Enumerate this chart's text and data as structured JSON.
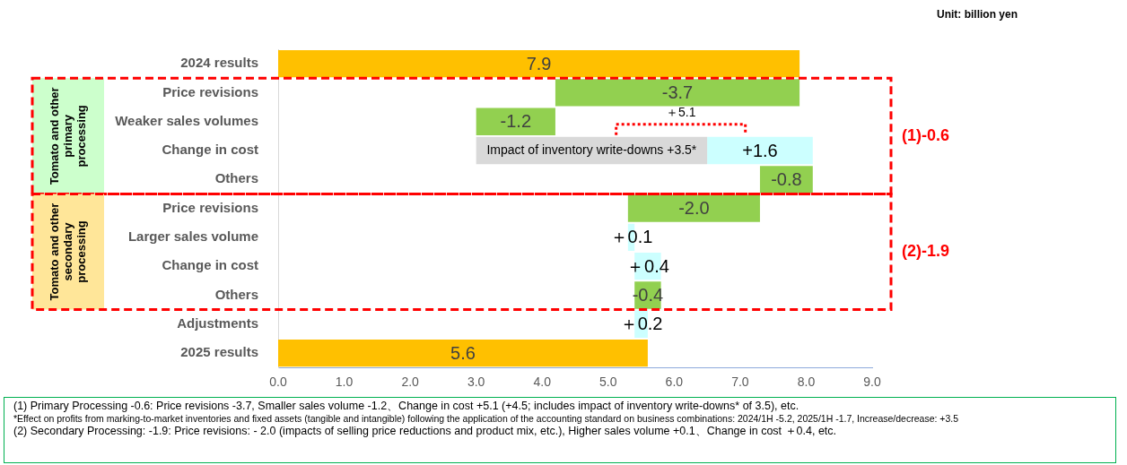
{
  "chart_data": {
    "type": "bar",
    "orientation": "horizontal",
    "categories": [
      "2024 results",
      "Price revisions",
      "Weaker sales volumes",
      "Change in cost",
      "Others",
      "Price revisions",
      "Larger sales volume",
      "Change in cost",
      "Others",
      "Adjustments",
      "2025 results"
    ],
    "series": [
      {
        "color": "#ffc000",
        "values": [
          7.9,
          null,
          null,
          null,
          null,
          null,
          null,
          null,
          null,
          null,
          5.6
        ],
        "base": [
          0,
          null,
          null,
          null,
          null,
          null,
          null,
          null,
          null,
          null,
          0
        ],
        "value_labels": [
          "7.9",
          null,
          null,
          null,
          null,
          null,
          null,
          null,
          null,
          null,
          "5.6"
        ]
      },
      {
        "color": "#92d050",
        "values": [
          null,
          -3.7,
          -1.2,
          null,
          -0.8,
          -2.0,
          null,
          null,
          -0.4,
          null,
          null
        ],
        "base": [
          null,
          7.9,
          4.2,
          null,
          8.1,
          7.3,
          null,
          null,
          5.8,
          null,
          null
        ],
        "value_labels": [
          null,
          "-3.7",
          "-1.2",
          null,
          "-0.8",
          "-2.0",
          null,
          null,
          "-0.4",
          null,
          null
        ]
      },
      {
        "color": "#d9d9d9",
        "values": [
          null,
          null,
          null,
          3.5,
          null,
          null,
          null,
          null,
          null,
          null,
          null
        ],
        "base": [
          null,
          null,
          null,
          3.0,
          null,
          null,
          null,
          null,
          null,
          null,
          null
        ],
        "value_labels": [
          null,
          null,
          null,
          "Impact of inventory write-downs +3.5*",
          null,
          null,
          null,
          null,
          null,
          null,
          null
        ]
      },
      {
        "color": "#ccffff",
        "values": [
          null,
          null,
          null,
          1.6,
          null,
          null,
          0.1,
          0.4,
          null,
          0.2,
          null
        ],
        "base": [
          null,
          null,
          null,
          6.5,
          null,
          null,
          5.3,
          5.4,
          null,
          5.4,
          null
        ],
        "value_labels": [
          null,
          null,
          null,
          "+1.6",
          null,
          null,
          "＋0.1",
          "＋0.4",
          null,
          "＋0.2",
          null
        ]
      }
    ],
    "xlim": [
      0,
      9
    ],
    "xticks": [
      {
        "value": 0,
        "label": "0.0"
      },
      {
        "value": 1,
        "label": "1.0"
      },
      {
        "value": 2,
        "label": "2.0"
      },
      {
        "value": 3,
        "label": "3.0"
      },
      {
        "value": 4,
        "label": "4.0"
      },
      {
        "value": 5,
        "label": "5.0"
      },
      {
        "value": 6,
        "label": "6.0"
      },
      {
        "value": 7,
        "label": "7.0"
      },
      {
        "value": 8,
        "label": "8.0"
      },
      {
        "value": 9,
        "label": "9.0"
      }
    ],
    "annotations": [
      "Unit: billion yen",
      "Tomato and other primary processing",
      "Tomato and other secondary processing",
      "(1)-0.6",
      "(2)-1.9",
      {
        "text": "＋5.1",
        "x": 6.1,
        "y": "Weaker sales volumes"
      },
      "(1) Primary Processing -0.6: Price revisions -3.7, Smaller sales volume -1.2、Change in cost +5.1 (+4.5; includes impact of inventory write-downs* of 3.5), etc.",
      "*Effect on profits from marking-to-market inventories and fixed assets (tangible and intangible) following the application of the accounting standard on business combinations: 2024/1H -5.2, 2025/1H -1.7, Increase/decrease: +3.5",
      "(2) Secondary Processing: -1.9: Price revisions: - 2.0 (impacts of selling price reductions and product mix, etc.), Higher sales volume +0.1、Change in cost ＋0.4, etc."
    ]
  }
}
